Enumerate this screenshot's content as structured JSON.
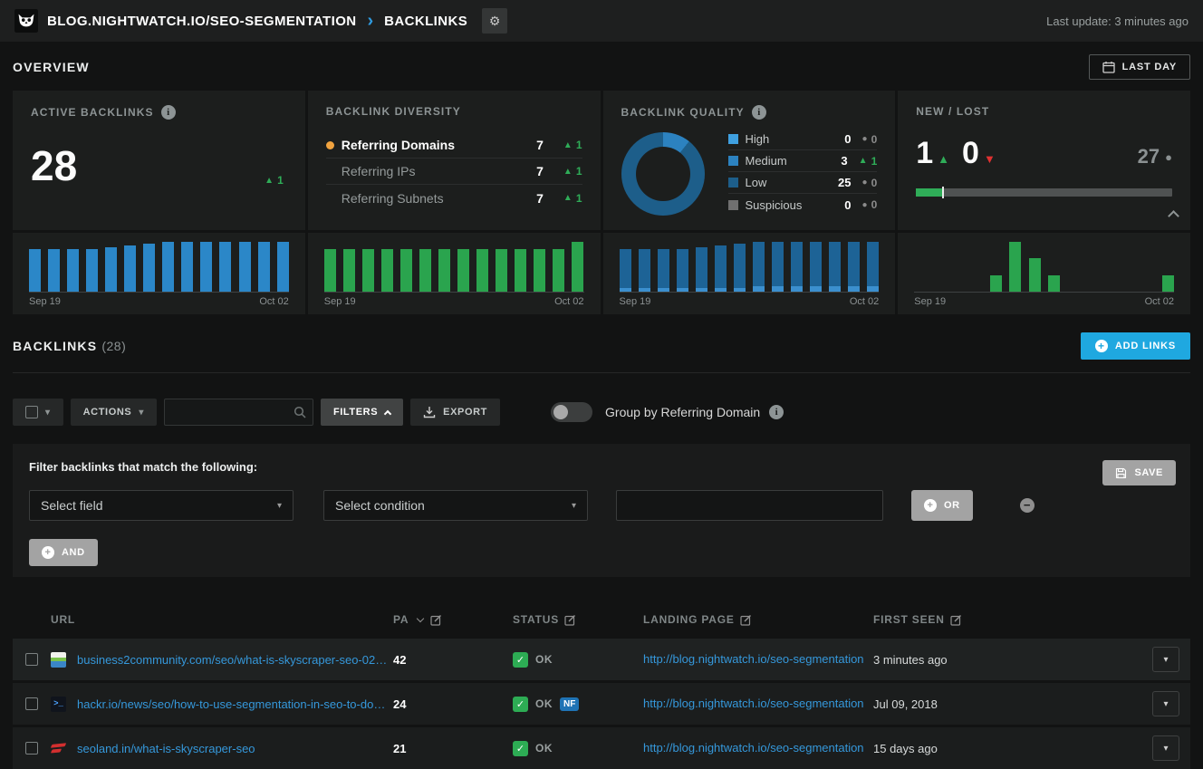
{
  "icons": {
    "gear": "⚙",
    "breadcrumb_chevron": "›",
    "caret_down": "▾",
    "up_arrow": "▲",
    "down_arrow": "▼",
    "dot": "●",
    "check": "✓",
    "plus": "+",
    "minus": "−"
  },
  "topbar": {
    "site": "BLOG.NIGHTWATCH.IO/SEO-SEGMENTATION",
    "section": "BACKLINKS",
    "last_update": "Last update: 3 minutes ago"
  },
  "overview": {
    "title": "OVERVIEW",
    "range_button": "LAST DAY",
    "active_backlinks": {
      "title": "ACTIVE BACKLINKS",
      "value": "28",
      "delta": "1",
      "trend": "up"
    },
    "diversity": {
      "title": "BACKLINK DIVERSITY",
      "rows": [
        {
          "label": "Referring Domains",
          "value": "7",
          "delta": "1",
          "trend": "up",
          "dot": "#f0a33f"
        },
        {
          "label": "Referring IPs",
          "value": "7",
          "delta": "1",
          "trend": "up"
        },
        {
          "label": "Referring Subnets",
          "value": "7",
          "delta": "1",
          "trend": "up"
        }
      ]
    },
    "quality": {
      "title": "BACKLINK QUALITY",
      "rows": [
        {
          "label": "High",
          "color": "#3fa0e0",
          "value": "0",
          "delta": "0",
          "trend": "flat"
        },
        {
          "label": "Medium",
          "color": "#2c82c0",
          "value": "3",
          "delta": "1",
          "trend": "up"
        },
        {
          "label": "Low",
          "color": "#1d5e8a",
          "value": "25",
          "delta": "0",
          "trend": "flat"
        },
        {
          "label": "Suspicious",
          "color": "#707070",
          "value": "0",
          "delta": "0",
          "trend": "flat"
        }
      ]
    },
    "newlost": {
      "title": "NEW / LOST",
      "new_value": "1",
      "lost_value": "0",
      "remaining_value": "27",
      "progress_pct": 10
    }
  },
  "chart_data": [
    {
      "type": "bar",
      "title": "Active backlinks trend",
      "x_start": "Sep 19",
      "x_end": "Oct 02",
      "color": "#2b87c8",
      "values": [
        24,
        24,
        24,
        24,
        25,
        26,
        27,
        28,
        28,
        28,
        28,
        28,
        28,
        28
      ],
      "ylim": [
        0,
        28
      ]
    },
    {
      "type": "bar",
      "title": "Backlink diversity trend",
      "x_start": "Sep 19",
      "x_end": "Oct 02",
      "color": "#2aa44e",
      "values": [
        6,
        6,
        6,
        6,
        6,
        6,
        6,
        6,
        6,
        6,
        6,
        6,
        6,
        7
      ],
      "ylim": [
        0,
        7
      ]
    },
    {
      "type": "bar",
      "title": "Backlink quality trend",
      "stacked": true,
      "x_start": "Sep 19",
      "x_end": "Oct 02",
      "series": [
        {
          "name": "Medium",
          "color": "#3b8fce",
          "values": [
            2,
            2,
            2,
            2,
            2,
            2,
            2,
            3,
            3,
            3,
            3,
            3,
            3,
            3
          ]
        },
        {
          "name": "Low",
          "color": "#1d6396",
          "values": [
            22,
            22,
            22,
            22,
            23,
            24,
            25,
            25,
            25,
            25,
            25,
            25,
            25,
            25
          ]
        }
      ],
      "ylim": [
        0,
        28
      ]
    },
    {
      "type": "bar",
      "title": "New / lost trend",
      "x_start": "Sep 19",
      "x_end": "Oct 02",
      "color": "#2aa44e",
      "values": [
        0,
        0,
        0,
        0,
        1,
        3,
        2,
        1,
        0,
        0,
        0,
        0,
        0,
        1
      ],
      "ylim": [
        0,
        3
      ]
    }
  ],
  "backlinks_section": {
    "title": "BACKLINKS",
    "count": "(28)",
    "add_button": "ADD LINKS"
  },
  "toolbar": {
    "actions_label": "ACTIONS",
    "filters_label": "FILTERS",
    "export_label": "EXPORT",
    "group_by_label": "Group by Referring Domain",
    "search_value": ""
  },
  "filter_panel": {
    "heading": "Filter backlinks that match the following:",
    "field_placeholder": "Select field",
    "condition_placeholder": "Select condition",
    "value": "",
    "or_label": "OR",
    "and_label": "AND",
    "save_label": "SAVE"
  },
  "table": {
    "columns": [
      "URL",
      "PA",
      "STATUS",
      "LANDING PAGE",
      "FIRST SEEN"
    ],
    "rows": [
      {
        "favicon": "business2community",
        "url": "business2community.com/seo/what-is-skyscraper-seo-021068…",
        "pa": "42",
        "status": "OK",
        "landing_page": "http://blog.nightwatch.io/seo-segmentation",
        "first_seen": "3 minutes ago"
      },
      {
        "favicon": "hackr",
        "url": "hackr.io/news/seo/how-to-use-segmentation-in-seo-to-dominat…",
        "pa": "24",
        "status": "OK",
        "badge": "NF",
        "landing_page": "http://blog.nightwatch.io/seo-segmentation",
        "first_seen": "Jul 09, 2018"
      },
      {
        "favicon": "seoland",
        "url": "seoland.in/what-is-skyscraper-seo",
        "pa": "21",
        "status": "OK",
        "landing_page": "http://blog.nightwatch.io/seo-segmentation",
        "first_seen": "15 days ago"
      }
    ]
  }
}
